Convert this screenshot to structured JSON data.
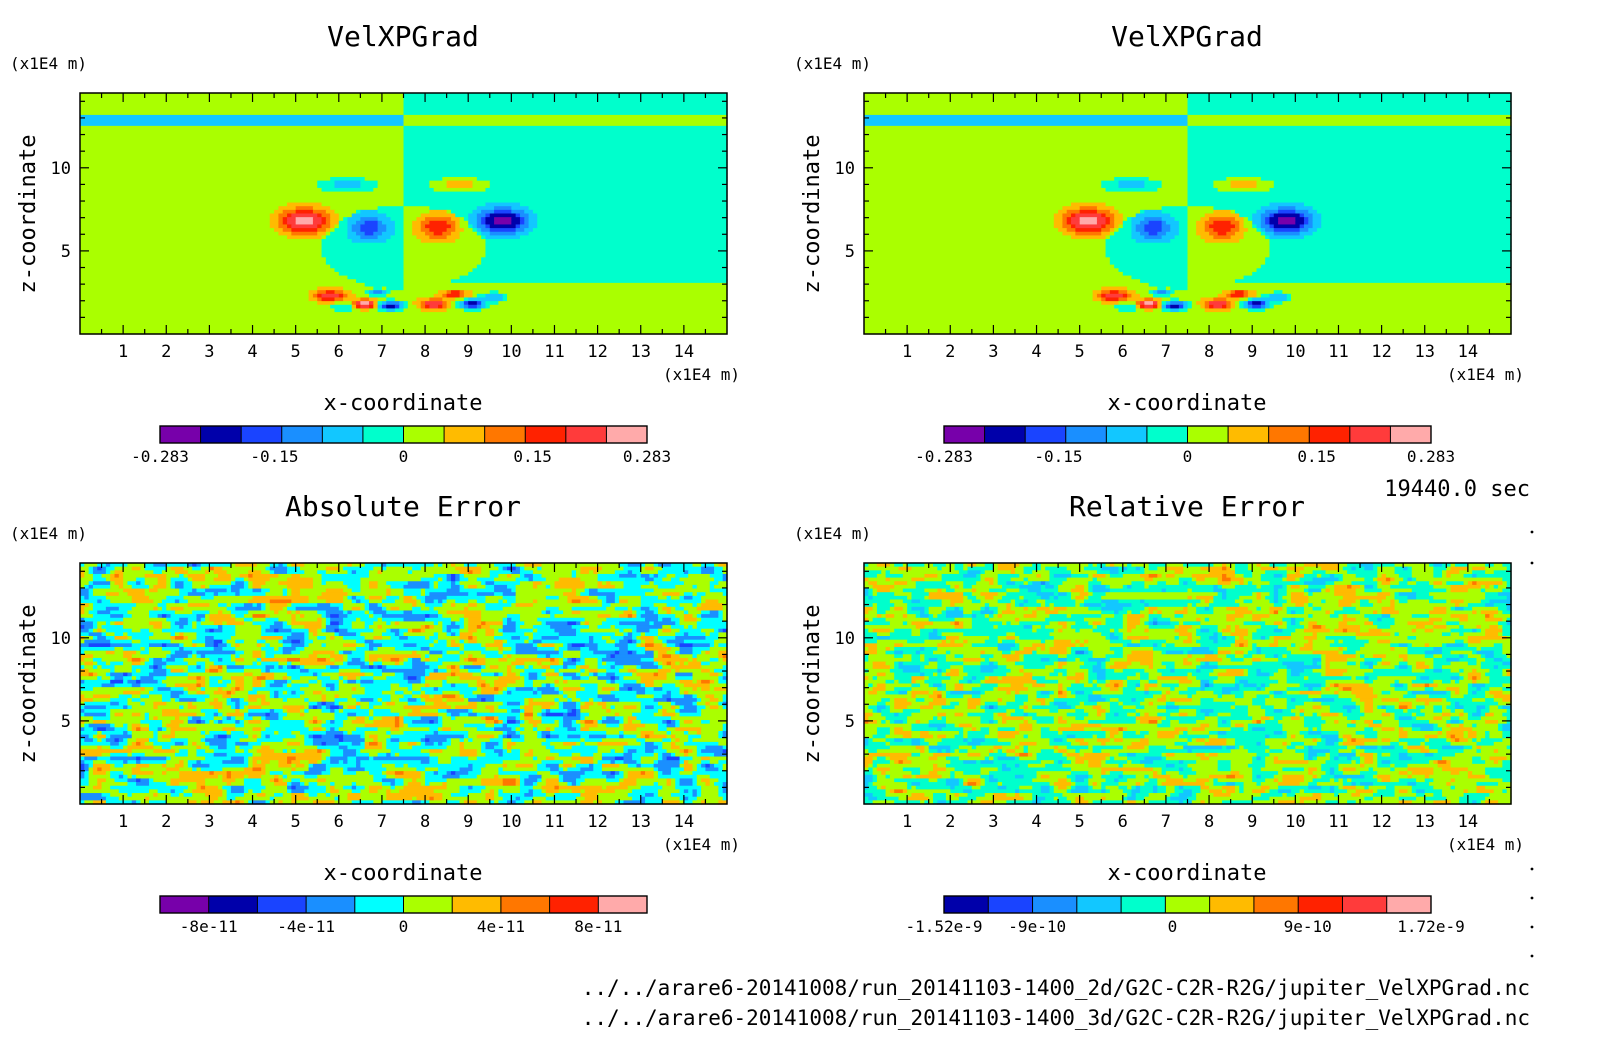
{
  "figure": {
    "time_label": "19440.0 sec",
    "file_paths": [
      "../../arare6-20141008/run_20141103-1400_2d/G2C-C2R-R2G/jupiter_VelXPGrad.nc",
      "../../arare6-20141008/run_20141103-1400_3d/G2C-C2R-R2G/jupiter_VelXPGrad.nc"
    ]
  },
  "chart_data": [
    {
      "type": "heatmap",
      "title": "VelXPGrad",
      "xlabel": "x-coordinate",
      "ylabel": "z-coordinate",
      "x_unit": "(x1E4 m)",
      "y_unit": "(x1E4 m)",
      "xlim": [
        0,
        15
      ],
      "ylim": [
        0,
        14.5
      ],
      "x_ticks": [
        "1",
        "2",
        "3",
        "4",
        "5",
        "6",
        "7",
        "8",
        "9",
        "10",
        "11",
        "12",
        "13",
        "14"
      ],
      "y_ticks": [
        "5",
        "10"
      ],
      "field": "velxpgrad",
      "colorbar": {
        "colors": [
          "#7700aa",
          "#0000aa",
          "#1a44ff",
          "#1a8fff",
          "#12c7ff",
          "#00ffcc",
          "#aaff00",
          "#ffbb00",
          "#ff7700",
          "#ff2200",
          "#ff3b3b",
          "#ffaaaa"
        ],
        "tick_labels": [
          "-0.283",
          "-0.15",
          "0",
          "0.15",
          "0.283"
        ],
        "tick_values": [
          -0.283,
          -0.15,
          0,
          0.15,
          0.283
        ],
        "range": [
          -0.283,
          0.283
        ]
      }
    },
    {
      "type": "heatmap",
      "title": "VelXPGrad",
      "xlabel": "x-coordinate",
      "ylabel": "z-coordinate",
      "x_unit": "(x1E4 m)",
      "y_unit": "(x1E4 m)",
      "xlim": [
        0,
        15
      ],
      "ylim": [
        0,
        14.5
      ],
      "x_ticks": [
        "1",
        "2",
        "3",
        "4",
        "5",
        "6",
        "7",
        "8",
        "9",
        "10",
        "11",
        "12",
        "13",
        "14"
      ],
      "y_ticks": [
        "5",
        "10"
      ],
      "field": "velxpgrad",
      "colorbar": {
        "colors": [
          "#7700aa",
          "#0000aa",
          "#1a44ff",
          "#1a8fff",
          "#12c7ff",
          "#00ffcc",
          "#aaff00",
          "#ffbb00",
          "#ff7700",
          "#ff2200",
          "#ff3b3b",
          "#ffaaaa"
        ],
        "tick_labels": [
          "-0.283",
          "-0.15",
          "0",
          "0.15",
          "0.283"
        ],
        "tick_values": [
          -0.283,
          -0.15,
          0,
          0.15,
          0.283
        ],
        "range": [
          -0.283,
          0.283
        ]
      }
    },
    {
      "type": "heatmap",
      "title": "Absolute Error",
      "xlabel": "x-coordinate",
      "ylabel": "z-coordinate",
      "x_unit": "(x1E4 m)",
      "y_unit": "(x1E4 m)",
      "xlim": [
        0,
        15
      ],
      "ylim": [
        0,
        14.5
      ],
      "x_ticks": [
        "1",
        "2",
        "3",
        "4",
        "5",
        "6",
        "7",
        "8",
        "9",
        "10",
        "11",
        "12",
        "13",
        "14"
      ],
      "y_ticks": [
        "5",
        "10"
      ],
      "field": "noise_abs",
      "colorbar": {
        "colors": [
          "#7700aa",
          "#0000aa",
          "#1a44ff",
          "#1a8fff",
          "#00ffff",
          "#aaff00",
          "#ffbb00",
          "#ff7700",
          "#ff2200",
          "#ffaaaa"
        ],
        "tick_labels": [
          "-8e-11",
          "-4e-11",
          "0",
          "4e-11",
          "8e-11"
        ],
        "tick_values": [
          -8e-11,
          -4e-11,
          0,
          4e-11,
          8e-11
        ],
        "range": [
          -1e-10,
          1e-10
        ]
      }
    },
    {
      "type": "heatmap",
      "title": "Relative Error",
      "xlabel": "x-coordinate",
      "ylabel": "z-coordinate",
      "x_unit": "(x1E4 m)",
      "y_unit": "(x1E4 m)",
      "xlim": [
        0,
        15
      ],
      "ylim": [
        0,
        14.5
      ],
      "x_ticks": [
        "1",
        "2",
        "3",
        "4",
        "5",
        "6",
        "7",
        "8",
        "9",
        "10",
        "11",
        "12",
        "13",
        "14"
      ],
      "y_ticks": [
        "5",
        "10"
      ],
      "field": "noise_rel",
      "colorbar": {
        "colors": [
          "#0000aa",
          "#1a44ff",
          "#1a8fff",
          "#12c7ff",
          "#00ffcc",
          "#aaff00",
          "#ffbb00",
          "#ff7700",
          "#ff2200",
          "#ff3b3b",
          "#ffaaaa"
        ],
        "tick_labels": [
          "-1.52e-9",
          "-9e-10",
          "0",
          "9e-10",
          "1.72e-9"
        ],
        "tick_values": [
          -1.52e-09,
          -9e-10,
          0,
          9e-10,
          1.72e-09
        ],
        "range": [
          -1.52e-09,
          1.72e-09
        ]
      }
    }
  ]
}
